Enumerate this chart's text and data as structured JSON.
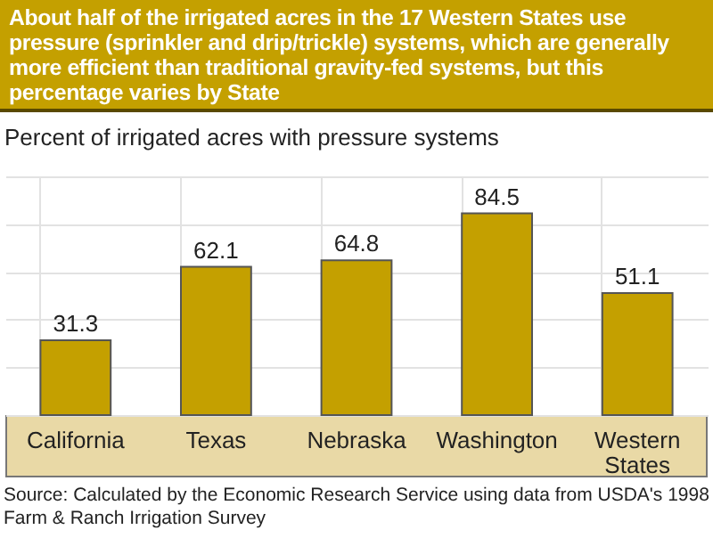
{
  "chart_data": {
    "type": "bar",
    "title": "About half of the irrigated acres in the 17 Western States use pressure (sprinkler and drip/trickle) systems, which are generally more efficient than traditional gravity-fed systems, but this percentage varies by State",
    "ylabel": "Percent of irrigated acres with pressure systems",
    "categories": [
      "California",
      "Texas",
      "Nebraska",
      "Washington",
      "Western States"
    ],
    "values": [
      31.3,
      62.1,
      64.8,
      84.5,
      51.1
    ],
    "color": "#c4a000",
    "ylim": [
      0,
      100
    ],
    "grid": true,
    "tick_labels": "x",
    "data_labels": true,
    "annotations": [
      "Source:  Calculated by the Economic Research Service using data from USDA's 1998 Farm & Ranch Irrigation Survey"
    ]
  }
}
